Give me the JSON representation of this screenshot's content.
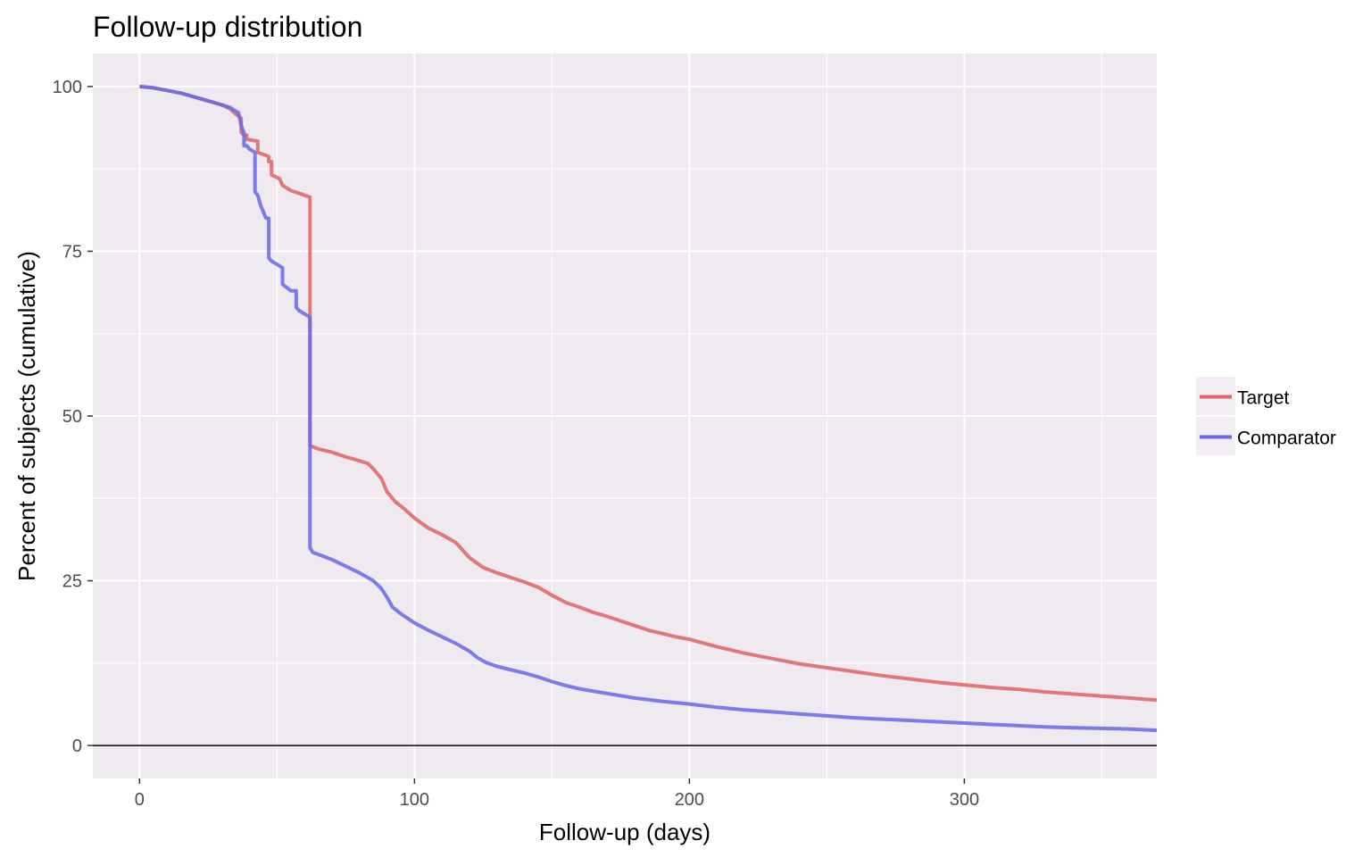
{
  "chart_data": {
    "type": "line",
    "title": "Follow-up distribution",
    "xlabel": "Follow-up (days)",
    "ylabel": "Percent of subjects (cumulative)",
    "xlim": [
      -17,
      370
    ],
    "ylim": [
      -5,
      105
    ],
    "x_ticks": [
      0,
      100,
      200,
      300
    ],
    "y_ticks": [
      0,
      25,
      50,
      75,
      100
    ],
    "x_minor": [
      50,
      150,
      250,
      350
    ],
    "y_minor": [
      12.5,
      37.5,
      62.5,
      87.5
    ],
    "grid": true,
    "legend_position": "right",
    "panel_color": "#eeeaef",
    "series": [
      {
        "name": "Target",
        "color": "#e06666",
        "points": [
          [
            0,
            100
          ],
          [
            5,
            99.8
          ],
          [
            10,
            99.4
          ],
          [
            15,
            99.0
          ],
          [
            20,
            98.4
          ],
          [
            25,
            97.8
          ],
          [
            30,
            97.2
          ],
          [
            33,
            96.6
          ],
          [
            35,
            95.8
          ],
          [
            37,
            95.2
          ],
          [
            37,
            93.0
          ],
          [
            38,
            92.6
          ],
          [
            39,
            92.6
          ],
          [
            39,
            92.0
          ],
          [
            43,
            91.7
          ],
          [
            43,
            90.0
          ],
          [
            47,
            89.4
          ],
          [
            47,
            88.6
          ],
          [
            48,
            88.6
          ],
          [
            48,
            86.6
          ],
          [
            51,
            86.0
          ],
          [
            52,
            85.0
          ],
          [
            55,
            84.2
          ],
          [
            58,
            83.8
          ],
          [
            62,
            83.2
          ],
          [
            62,
            45.5
          ],
          [
            65,
            45.0
          ],
          [
            70,
            44.5
          ],
          [
            75,
            43.8
          ],
          [
            80,
            43.2
          ],
          [
            83,
            42.8
          ],
          [
            85,
            42.0
          ],
          [
            88,
            40.5
          ],
          [
            90,
            38.5
          ],
          [
            93,
            37.0
          ],
          [
            96,
            36.0
          ],
          [
            100,
            34.5
          ],
          [
            105,
            33.0
          ],
          [
            110,
            32.0
          ],
          [
            115,
            30.8
          ],
          [
            120,
            28.5
          ],
          [
            125,
            27.0
          ],
          [
            130,
            26.2
          ],
          [
            135,
            25.5
          ],
          [
            140,
            24.8
          ],
          [
            145,
            24.0
          ],
          [
            150,
            22.8
          ],
          [
            155,
            21.7
          ],
          [
            160,
            21.0
          ],
          [
            165,
            20.2
          ],
          [
            170,
            19.6
          ],
          [
            175,
            18.9
          ],
          [
            180,
            18.2
          ],
          [
            185,
            17.5
          ],
          [
            190,
            17.0
          ],
          [
            195,
            16.5
          ],
          [
            200,
            16.1
          ],
          [
            210,
            15.0
          ],
          [
            220,
            14.0
          ],
          [
            230,
            13.2
          ],
          [
            240,
            12.4
          ],
          [
            250,
            11.8
          ],
          [
            260,
            11.2
          ],
          [
            270,
            10.6
          ],
          [
            280,
            10.1
          ],
          [
            290,
            9.6
          ],
          [
            300,
            9.2
          ],
          [
            310,
            8.8
          ],
          [
            320,
            8.5
          ],
          [
            330,
            8.1
          ],
          [
            340,
            7.8
          ],
          [
            350,
            7.5
          ],
          [
            360,
            7.2
          ],
          [
            370,
            6.9
          ]
        ]
      },
      {
        "name": "Comparator",
        "color": "#6b6bea",
        "points": [
          [
            0,
            100
          ],
          [
            5,
            99.8
          ],
          [
            10,
            99.4
          ],
          [
            15,
            99.0
          ],
          [
            20,
            98.4
          ],
          [
            25,
            97.8
          ],
          [
            30,
            97.2
          ],
          [
            33,
            96.8
          ],
          [
            36,
            96.0
          ],
          [
            37,
            94.0
          ],
          [
            38,
            93.0
          ],
          [
            38,
            91.0
          ],
          [
            39,
            91.0
          ],
          [
            40,
            90.5
          ],
          [
            42,
            90.0
          ],
          [
            42,
            84.0
          ],
          [
            43,
            83.5
          ],
          [
            44,
            82.0
          ],
          [
            45,
            81.0
          ],
          [
            46,
            80.0
          ],
          [
            47,
            80.0
          ],
          [
            47,
            74.0
          ],
          [
            48,
            73.5
          ],
          [
            50,
            73.0
          ],
          [
            52,
            72.5
          ],
          [
            52,
            70.0
          ],
          [
            55,
            69.0
          ],
          [
            57,
            69.0
          ],
          [
            57,
            66.5
          ],
          [
            58,
            66.0
          ],
          [
            60,
            65.5
          ],
          [
            62,
            65.0
          ],
          [
            62,
            30.0
          ],
          [
            63,
            29.3
          ],
          [
            65,
            29.0
          ],
          [
            70,
            28.2
          ],
          [
            75,
            27.2
          ],
          [
            80,
            26.2
          ],
          [
            85,
            25.0
          ],
          [
            88,
            23.8
          ],
          [
            90,
            22.5
          ],
          [
            92,
            21.0
          ],
          [
            95,
            20.0
          ],
          [
            100,
            18.6
          ],
          [
            105,
            17.5
          ],
          [
            110,
            16.5
          ],
          [
            115,
            15.5
          ],
          [
            120,
            14.3
          ],
          [
            123,
            13.3
          ],
          [
            126,
            12.6
          ],
          [
            130,
            12.0
          ],
          [
            140,
            11.0
          ],
          [
            145,
            10.4
          ],
          [
            150,
            9.7
          ],
          [
            155,
            9.1
          ],
          [
            160,
            8.6
          ],
          [
            170,
            7.9
          ],
          [
            180,
            7.2
          ],
          [
            190,
            6.7
          ],
          [
            200,
            6.3
          ],
          [
            210,
            5.8
          ],
          [
            220,
            5.4
          ],
          [
            230,
            5.1
          ],
          [
            240,
            4.8
          ],
          [
            250,
            4.5
          ],
          [
            260,
            4.2
          ],
          [
            270,
            4.0
          ],
          [
            280,
            3.8
          ],
          [
            290,
            3.6
          ],
          [
            300,
            3.4
          ],
          [
            310,
            3.2
          ],
          [
            320,
            3.0
          ],
          [
            330,
            2.8
          ],
          [
            340,
            2.7
          ],
          [
            350,
            2.6
          ],
          [
            360,
            2.5
          ],
          [
            370,
            2.3
          ]
        ]
      }
    ]
  }
}
